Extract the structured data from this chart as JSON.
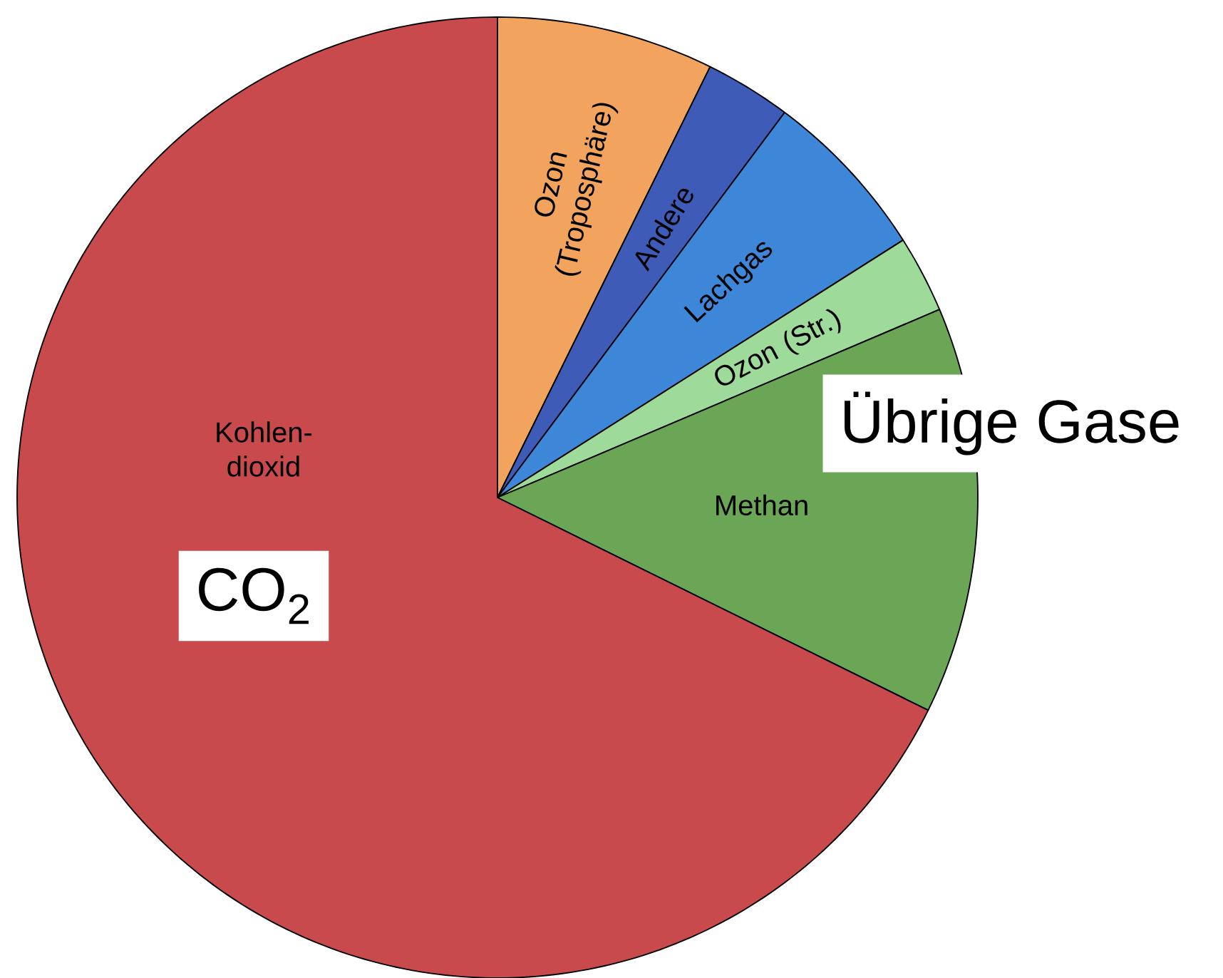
{
  "chart_data": {
    "type": "pie",
    "categories": [
      "Ozon (Troposphäre)",
      "Andere",
      "Lachgas",
      "Ozon (Str.)",
      "Methan",
      "Kohlen-dioxid"
    ],
    "values": [
      7.3,
      2.9,
      5.8,
      2.6,
      13.7,
      67.7
    ],
    "colors": [
      "#f2a45f",
      "#3f5bb8",
      "#3e86d8",
      "#9edb9a",
      "#6aa656",
      "#c84a4d"
    ],
    "annotations": [
      "CO$_{2}$",
      "Übrige Gase"
    ]
  }
}
